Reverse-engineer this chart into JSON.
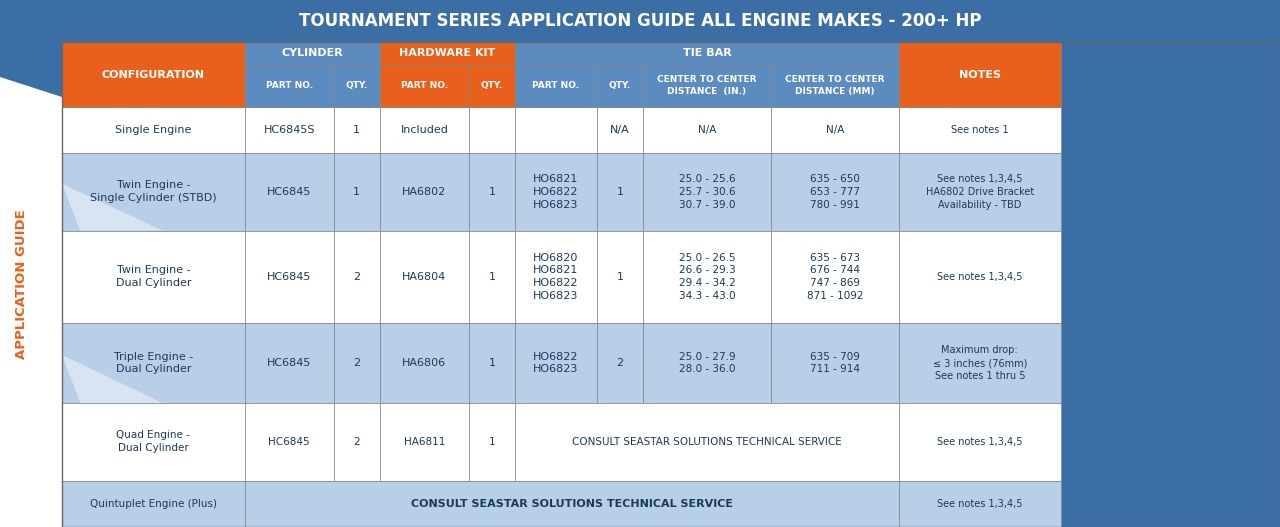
{
  "title": "TOURNAMENT SERIES APPLICATION GUIDE ALL ENGINE MAKES - 200+ HP",
  "orange": "#e8601c",
  "blue_dark": "#3a6ea5",
  "blue_mid": "#5b8bbf",
  "blue_light": "#b8cfe8",
  "white": "#ffffff",
  "bg_white": "#f5f5f5",
  "dark_text": "#1a3a5c",
  "sidebar_label": "APPLICATION GUIDE",
  "rows": [
    {
      "config": "Single Engine",
      "cyl_part": "HC6845S",
      "cyl_qty": "1",
      "hw_part": "Included",
      "hw_qty": "",
      "tb_part": "",
      "tb_qty": "N/A",
      "ctc_in": "N/A",
      "ctc_mm": "N/A",
      "notes": "See notes 1",
      "bg": "white"
    },
    {
      "config": "Twin Engine -\nSingle Cylinder (STBD)",
      "cyl_part": "HC6845",
      "cyl_qty": "1",
      "hw_part": "HA6802",
      "hw_qty": "1",
      "tb_part": "HO6821\nHO6822\nHO6823",
      "tb_qty": "1",
      "ctc_in": "25.0 - 25.6\n25.7 - 30.6\n30.7 - 39.0",
      "ctc_mm": "635 - 650\n653 - 777\n780 - 991",
      "notes": "See notes 1,3,4,5\nHA6802 Drive Bracket\nAvailability - TBD",
      "bg": "blue"
    },
    {
      "config": "Twin Engine -\nDual Cylinder",
      "cyl_part": "HC6845",
      "cyl_qty": "2",
      "hw_part": "HA6804",
      "hw_qty": "1",
      "tb_part": "HO6820\nHO6821\nHO6822\nHO6823",
      "tb_qty": "1",
      "ctc_in": "25.0 - 26.5\n26.6 - 29.3\n29.4 - 34.2\n34.3 - 43.0",
      "ctc_mm": "635 - 673\n676 - 744\n747 - 869\n871 - 1092",
      "notes": "See notes 1,3,4,5",
      "bg": "white"
    },
    {
      "config": "Triple Engine -\nDual Cylinder",
      "cyl_part": "HC6845",
      "cyl_qty": "2",
      "hw_part": "HA6806",
      "hw_qty": "1",
      "tb_part": "HO6822\nHO6823",
      "tb_qty": "2",
      "ctc_in": "25.0 - 27.9\n28.0 - 36.0",
      "ctc_mm": "635 - 709\n711 - 914",
      "notes": "Maximum drop:\n≤ 3 inches (76mm)\nSee notes 1 thru 5",
      "bg": "blue"
    },
    {
      "config": "Quad Engine -\nDual Cylinder",
      "cyl_part": "HC6845",
      "cyl_qty": "2",
      "hw_part": "HA6811",
      "hw_qty": "1",
      "tb_part": "CONSULT SEASTAR SOLUTIONS TECHNICAL SERVICE",
      "tb_qty": "",
      "ctc_in": "",
      "ctc_mm": "",
      "notes": "See notes 1,3,4,5",
      "bg": "white",
      "span_tb": true
    },
    {
      "config": "Quintuplet Engine (Plus)",
      "cyl_part": "",
      "cyl_qty": "",
      "hw_part": "",
      "hw_qty": "",
      "tb_part": "CONSULT SEASTAR SOLUTIONS TECHNICAL SERVICE",
      "tb_qty": "",
      "ctc_in": "",
      "ctc_mm": "",
      "notes": "See notes 1,3,4,5",
      "bg": "blue",
      "span_all": true
    }
  ]
}
